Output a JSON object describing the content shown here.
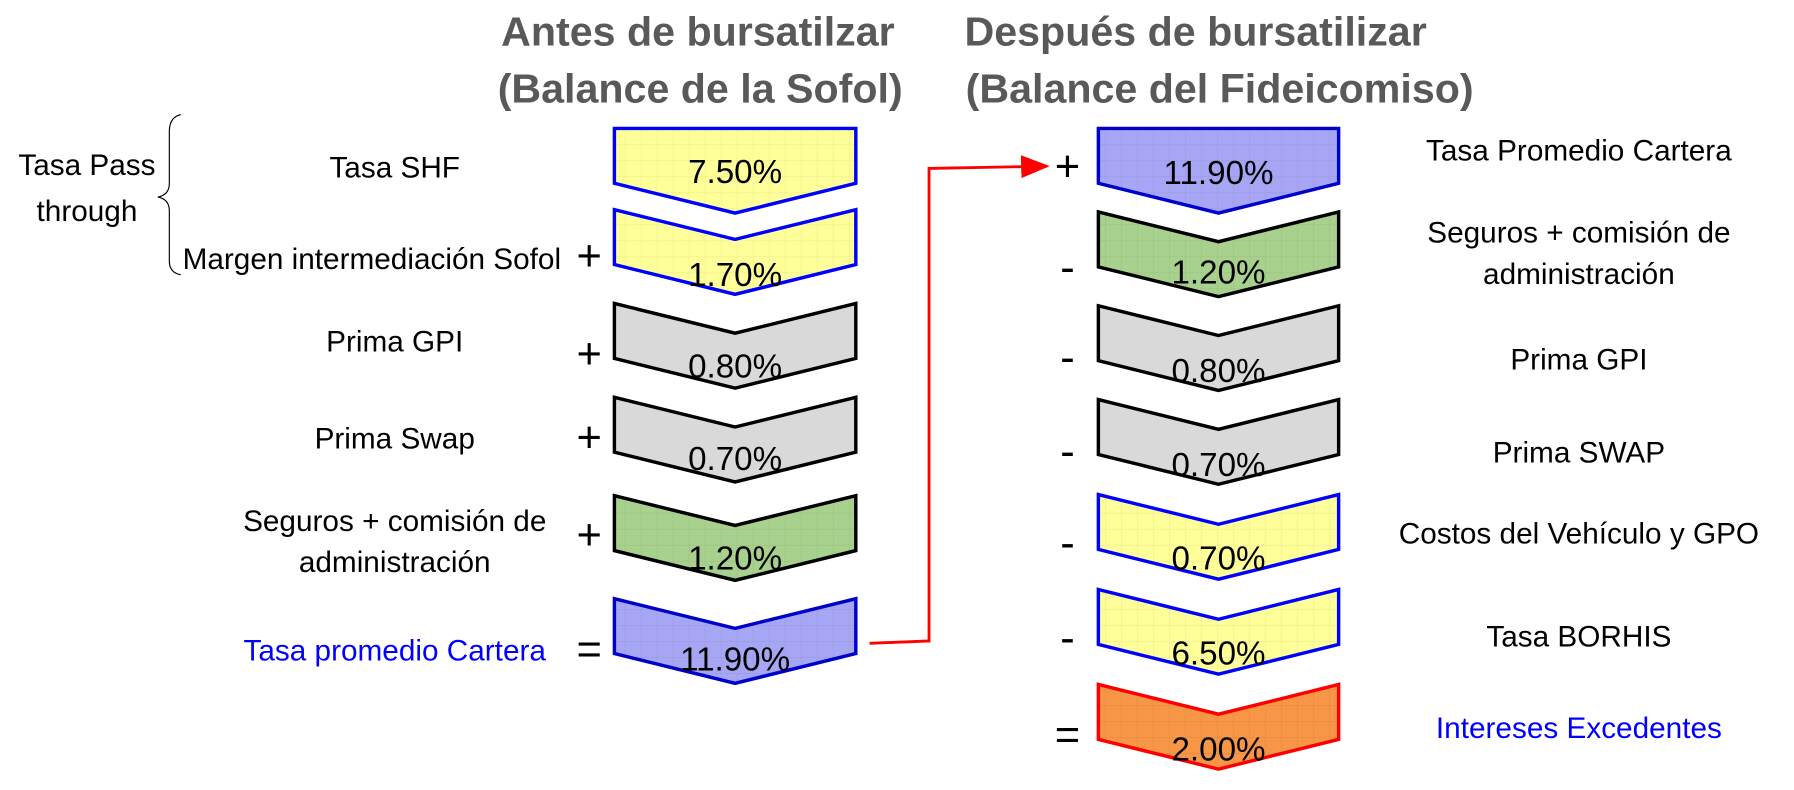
{
  "left": {
    "title": [
      "Antes de bursatilzar",
      "(Balance de la Sofol)"
    ],
    "brace_label": [
      "Tasa Pass",
      "through"
    ],
    "rows": [
      {
        "label": [
          "Tasa SHF"
        ],
        "value": "7.50%"
      },
      {
        "label": [
          "Margen intermediación Sofol"
        ],
        "op": "+",
        "value": "1.70%"
      },
      {
        "label": [
          "Prima GPI"
        ],
        "op": "+",
        "value": "0.80%"
      },
      {
        "label": [
          "Prima Swap"
        ],
        "op": "+",
        "value": "0.70%"
      },
      {
        "label": [
          "Seguros + comisión de",
          "administración"
        ],
        "op": "+",
        "value": "1.20%"
      },
      {
        "label": [
          "Tasa promedio Cartera"
        ],
        "op": "=",
        "value": "11.90%"
      }
    ]
  },
  "right": {
    "title": [
      "Después de bursatilizar",
      "(Balance del Fideicomiso)"
    ],
    "rows": [
      {
        "label": [
          "Tasa Promedio Cartera"
        ],
        "op": "+",
        "value": "11.90%"
      },
      {
        "label": [
          "Seguros + comisión de",
          "administración"
        ],
        "op": "-",
        "value": "1.20%"
      },
      {
        "label": [
          "Prima GPI"
        ],
        "op": "-",
        "value": "0.80%"
      },
      {
        "label": [
          "Prima SWAP"
        ],
        "op": "-",
        "value": "0.70%"
      },
      {
        "label": [
          "Costos del Vehículo y GPO"
        ],
        "op": "-",
        "value": "0.70%"
      },
      {
        "label": [
          "Tasa BORHIS"
        ],
        "op": "-",
        "value": "6.50%"
      },
      {
        "label": [
          "Intereses Excedentes"
        ],
        "op": "=",
        "value": "2.00%"
      }
    ]
  }
}
